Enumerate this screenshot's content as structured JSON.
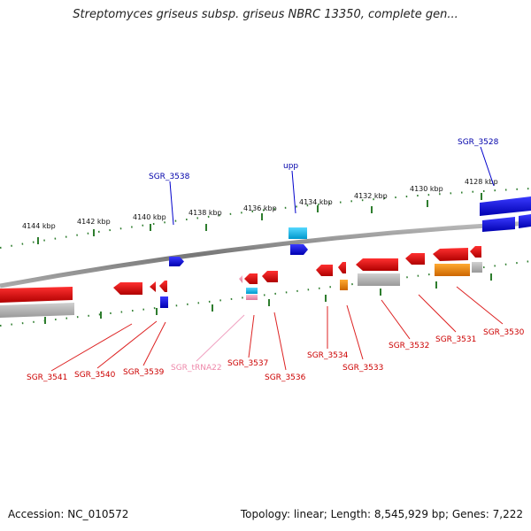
{
  "title": "Streptomyces griseus subsp. griseus NBRC 13350, complete gen...",
  "accession_label": "Accession: NC_010572",
  "topology_label": "Topology: linear; Length: 8,545,929 bp; Genes: 7,222",
  "ruler_labels": [
    "4144 kbp",
    "4142 kbp",
    "4140 kbp",
    "4138 kbp",
    "4136 kbp",
    "4134 kbp",
    "4132 kbp",
    "4130 kbp",
    "4128 kbp"
  ],
  "labels_top": [
    "SGR_3538",
    "upp",
    "SGR_3528"
  ],
  "labels_bottom": [
    "SGR_3541",
    "SGR_3540",
    "SGR_3539",
    "SGR_tRNA22",
    "SGR_3537",
    "SGR_3536",
    "SGR_3534",
    "SGR_3533",
    "SGR_3532",
    "SGR_3531",
    "SGR_3530"
  ],
  "colors": {
    "backbone": "#8a8a8a",
    "ruler_tick": "#2e7d2e",
    "forward_gene": "#0000dd",
    "reverse_gene": "#dd0000",
    "rna_gene": "#00aadd",
    "trna_gene": "#ee99bb",
    "other_gene": "#ee8800",
    "pseudo_gene": "#aaaaaa",
    "forward_label": "#0000aa",
    "reverse_label": "#cc0000",
    "trna_label": "#ee88aa"
  }
}
